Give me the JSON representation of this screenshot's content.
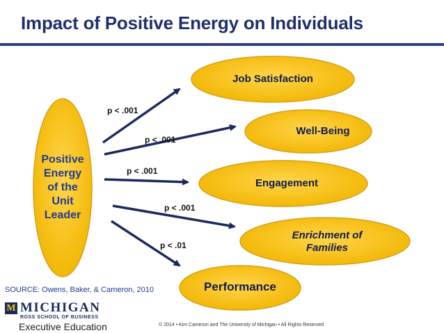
{
  "slide": {
    "title": "Impact of Positive Energy on Individuals",
    "source": "SOURCE:  Owens, Baker, & Cameron, 2010",
    "copyright": "© 2014 • Kim Cameron and The University of Michigan • All Rights Reserved"
  },
  "leader": {
    "lines": [
      "Positive",
      "Energy",
      "of the",
      "Unit",
      "Leader"
    ]
  },
  "outcomes": [
    {
      "label": "Job Satisfaction",
      "p": "p < .001"
    },
    {
      "label": "Well-Being",
      "p": "p < .001"
    },
    {
      "label": "Engagement",
      "p": "p < .001"
    },
    {
      "label": "Enrichment of Families",
      "lines": [
        "Enrichment of",
        "Families"
      ],
      "p": "p < .001"
    },
    {
      "label": "Performance",
      "p": "p < .01"
    }
  ],
  "logo": {
    "mark": "M",
    "name": "MICHIGAN",
    "school": "ROSS SCHOOL OF BUSINESS",
    "unit": "Executive Education"
  },
  "colors": {
    "title": "#1f2f6b",
    "ellipse_fill": "#f5b800",
    "ellipse_stroke": "#d4a017",
    "arrow": "#1b2a5e",
    "leader_text": "#1f3a93"
  }
}
